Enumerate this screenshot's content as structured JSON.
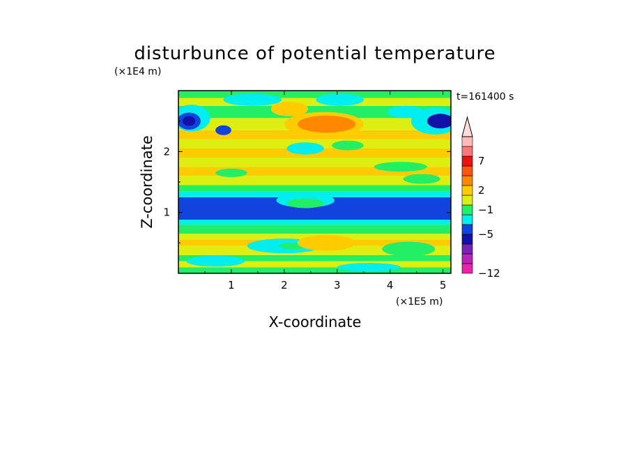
{
  "chart_data": {
    "type": "heatmap",
    "title": "disturbunce of potential temperature",
    "xlabel": "X-coordinate",
    "ylabel": "Z-coordinate",
    "x_unit": "(×1E5 m)",
    "y_unit": "(×1E4 m)",
    "time_label": "t=161400 s",
    "xlim": [
      0,
      5.15
    ],
    "ylim": [
      0,
      3.0
    ],
    "x_ticks": [
      1,
      2,
      3,
      4,
      5
    ],
    "y_ticks": [
      1,
      2
    ],
    "colorbar": {
      "levels_bottom_to_top": [
        {
          "color": "#ee22aa"
        },
        {
          "color": "#bb22bb"
        },
        {
          "color": "#7722bb"
        },
        {
          "color": "#1111aa"
        },
        {
          "color": "#1144dd"
        },
        {
          "color": "#00eeee"
        },
        {
          "color": "#22ee66"
        },
        {
          "color": "#ddee11"
        },
        {
          "color": "#ffcc00"
        },
        {
          "color": "#ff8800"
        },
        {
          "color": "#ff5511"
        },
        {
          "color": "#ee1111"
        },
        {
          "color": "#ff7777"
        },
        {
          "color": "#ffbbbb"
        }
      ],
      "extend_top_color": "#ffdddd",
      "labels": [
        {
          "text": "7",
          "at_level": 11.5
        },
        {
          "text": "2",
          "at_level": 8.5
        },
        {
          "text": "−1",
          "at_level": 6.5
        },
        {
          "text": "−5",
          "at_level": 4.0
        },
        {
          "text": "−12",
          "at_level": 0.0
        }
      ]
    },
    "bands": [
      {
        "y0": 0.0,
        "y1": 0.1,
        "color": "#22ee66"
      },
      {
        "y0": 0.1,
        "y1": 0.2,
        "color": "#ddee11"
      },
      {
        "y0": 0.2,
        "y1": 0.3,
        "color": "#22ee66"
      },
      {
        "y0": 0.3,
        "y1": 0.45,
        "color": "#ddee11"
      },
      {
        "y0": 0.45,
        "y1": 0.55,
        "color": "#ffcc00"
      },
      {
        "y0": 0.55,
        "y1": 0.65,
        "color": "#ddee11"
      },
      {
        "y0": 0.65,
        "y1": 0.8,
        "color": "#22ee66"
      },
      {
        "y0": 0.8,
        "y1": 0.88,
        "color": "#00eeee"
      },
      {
        "y0": 0.88,
        "y1": 1.25,
        "color": "#1144dd"
      },
      {
        "y0": 1.25,
        "y1": 1.35,
        "color": "#00eeee"
      },
      {
        "y0": 1.35,
        "y1": 1.45,
        "color": "#22ee66"
      },
      {
        "y0": 1.45,
        "y1": 1.6,
        "color": "#ddee11"
      },
      {
        "y0": 1.6,
        "y1": 1.75,
        "color": "#ffcc00"
      },
      {
        "y0": 1.75,
        "y1": 1.9,
        "color": "#ddee11"
      },
      {
        "y0": 1.9,
        "y1": 2.05,
        "color": "#ffcc00"
      },
      {
        "y0": 2.05,
        "y1": 2.2,
        "color": "#ddee11"
      },
      {
        "y0": 2.2,
        "y1": 2.35,
        "color": "#ffcc00"
      },
      {
        "y0": 2.35,
        "y1": 2.55,
        "color": "#ddee11"
      },
      {
        "y0": 2.55,
        "y1": 2.75,
        "color": "#22ee66"
      },
      {
        "y0": 2.75,
        "y1": 2.88,
        "color": "#ddee11"
      },
      {
        "y0": 2.88,
        "y1": 3.0,
        "color": "#22ee66"
      }
    ],
    "blobs": [
      {
        "cx": 2.75,
        "cy": 2.45,
        "rx": 0.75,
        "ry": 0.2,
        "color": "#ffcc00"
      },
      {
        "cx": 2.8,
        "cy": 2.45,
        "rx": 0.55,
        "ry": 0.14,
        "color": "#ff8800"
      },
      {
        "cx": 2.1,
        "cy": 2.7,
        "rx": 0.35,
        "ry": 0.12,
        "color": "#ffcc00"
      },
      {
        "cx": 0.25,
        "cy": 2.55,
        "rx": 0.35,
        "ry": 0.22,
        "color": "#00eeee"
      },
      {
        "cx": 0.2,
        "cy": 2.5,
        "rx": 0.22,
        "ry": 0.14,
        "color": "#1144dd"
      },
      {
        "cx": 0.2,
        "cy": 2.5,
        "rx": 0.12,
        "ry": 0.08,
        "color": "#1111aa"
      },
      {
        "cx": 0.85,
        "cy": 2.35,
        "rx": 0.15,
        "ry": 0.08,
        "color": "#1144dd"
      },
      {
        "cx": 4.85,
        "cy": 2.5,
        "rx": 0.45,
        "ry": 0.22,
        "color": "#00eeee"
      },
      {
        "cx": 4.95,
        "cy": 2.5,
        "rx": 0.25,
        "ry": 0.12,
        "color": "#1111aa"
      },
      {
        "cx": 4.3,
        "cy": 2.65,
        "rx": 0.35,
        "ry": 0.1,
        "color": "#00eeee"
      },
      {
        "cx": 2.4,
        "cy": 2.05,
        "rx": 0.35,
        "ry": 0.1,
        "color": "#00eeee"
      },
      {
        "cx": 3.2,
        "cy": 2.1,
        "rx": 0.3,
        "ry": 0.08,
        "color": "#22ee66"
      },
      {
        "cx": 4.2,
        "cy": 1.75,
        "rx": 0.5,
        "ry": 0.08,
        "color": "#22ee66"
      },
      {
        "cx": 1.4,
        "cy": 2.85,
        "rx": 0.55,
        "ry": 0.1,
        "color": "#00eeee"
      },
      {
        "cx": 3.05,
        "cy": 2.85,
        "rx": 0.45,
        "ry": 0.1,
        "color": "#00eeee"
      },
      {
        "cx": 2.4,
        "cy": 1.2,
        "rx": 0.55,
        "ry": 0.12,
        "color": "#00eeee"
      },
      {
        "cx": 2.4,
        "cy": 1.15,
        "rx": 0.35,
        "ry": 0.08,
        "color": "#22ee66"
      },
      {
        "cx": 2.0,
        "cy": 0.45,
        "rx": 0.7,
        "ry": 0.12,
        "color": "#00eeee"
      },
      {
        "cx": 2.2,
        "cy": 0.45,
        "rx": 0.3,
        "ry": 0.05,
        "color": "#22ee66"
      },
      {
        "cx": 4.35,
        "cy": 0.4,
        "rx": 0.5,
        "ry": 0.12,
        "color": "#22ee66"
      },
      {
        "cx": 2.8,
        "cy": 0.5,
        "rx": 0.55,
        "ry": 0.13,
        "color": "#ffcc00"
      },
      {
        "cx": 0.7,
        "cy": 0.2,
        "rx": 0.55,
        "ry": 0.09,
        "color": "#00eeee"
      },
      {
        "cx": 3.6,
        "cy": 0.1,
        "rx": 0.6,
        "ry": 0.07,
        "color": "#00eeee"
      },
      {
        "cx": 4.6,
        "cy": 1.55,
        "rx": 0.35,
        "ry": 0.08,
        "color": "#22ee66"
      },
      {
        "cx": 1.0,
        "cy": 1.65,
        "rx": 0.3,
        "ry": 0.07,
        "color": "#22ee66"
      }
    ]
  }
}
